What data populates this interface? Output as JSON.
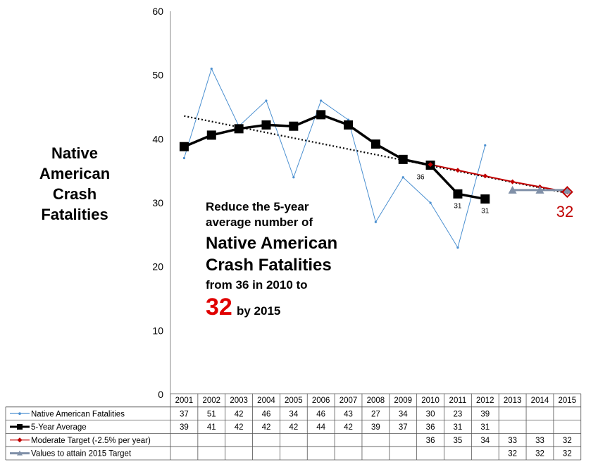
{
  "chart_data": {
    "type": "line",
    "title": "Native American Crash Fatalities",
    "ylim": [
      0,
      60
    ],
    "yticks": [
      0,
      10,
      20,
      30,
      40,
      50,
      60
    ],
    "grid": false,
    "categories": [
      "2001",
      "2002",
      "2003",
      "2004",
      "2005",
      "2006",
      "2007",
      "2008",
      "2009",
      "2010",
      "2011",
      "2012",
      "2013",
      "2014",
      "2015"
    ],
    "series": [
      {
        "name": "Native American Fatalities",
        "color": "#4a8fd0",
        "values": [
          37,
          51,
          42,
          46,
          34,
          46,
          43,
          27,
          34,
          30,
          23,
          39,
          null,
          null,
          null
        ],
        "table_values": [
          "37",
          "51",
          "42",
          "46",
          "34",
          "46",
          "43",
          "27",
          "34",
          "30",
          "23",
          "39",
          "",
          "",
          ""
        ]
      },
      {
        "name": "5-Year Average",
        "color": "#000000",
        "values": [
          38.8,
          40.6,
          41.6,
          42.2,
          42.0,
          43.8,
          42.2,
          39.2,
          36.8,
          35.9,
          31.4,
          30.6,
          null,
          null,
          null
        ],
        "table_values": [
          "39",
          "41",
          "42",
          "42",
          "42",
          "44",
          "42",
          "39",
          "37",
          "36",
          "31",
          "31",
          "",
          "",
          ""
        ]
      },
      {
        "name": "Moderate Target (-2.5% per year)",
        "color": "#c00000",
        "values": [
          null,
          null,
          null,
          null,
          null,
          null,
          null,
          null,
          null,
          36,
          35.1,
          34.2,
          33.3,
          32.5,
          31.7
        ],
        "table_values": [
          "",
          "",
          "",
          "",
          "",
          "",
          "",
          "",
          "",
          "36",
          "35",
          "34",
          "33",
          "33",
          "32"
        ]
      },
      {
        "name": "Values to attain 2015 Target",
        "color": "#8090a8",
        "values": [
          null,
          null,
          null,
          null,
          null,
          null,
          null,
          null,
          null,
          null,
          null,
          null,
          32,
          32,
          32
        ],
        "table_values": [
          "",
          "",
          "",
          "",
          "",
          "",
          "",
          "",
          "",
          "",
          "",
          "",
          "32",
          "32",
          "32"
        ]
      }
    ],
    "trendline": {
      "start": 43.6,
      "end": 31.5,
      "style": "dotted"
    },
    "data_labels": [
      {
        "category": "2010",
        "value": 35.9,
        "text": "36"
      },
      {
        "category": "2011",
        "value": 31.4,
        "text": "31"
      },
      {
        "category": "2012",
        "value": 30.6,
        "text": "31"
      }
    ],
    "end_label": "32",
    "annotation": {
      "line1": "Reduce the 5-year",
      "line2": "average number of",
      "line3": "Native American",
      "line4": "Crash Fatalities",
      "line5": "from 36 in 2010 to",
      "target": "32",
      "line6_tail": "by 2015"
    }
  }
}
